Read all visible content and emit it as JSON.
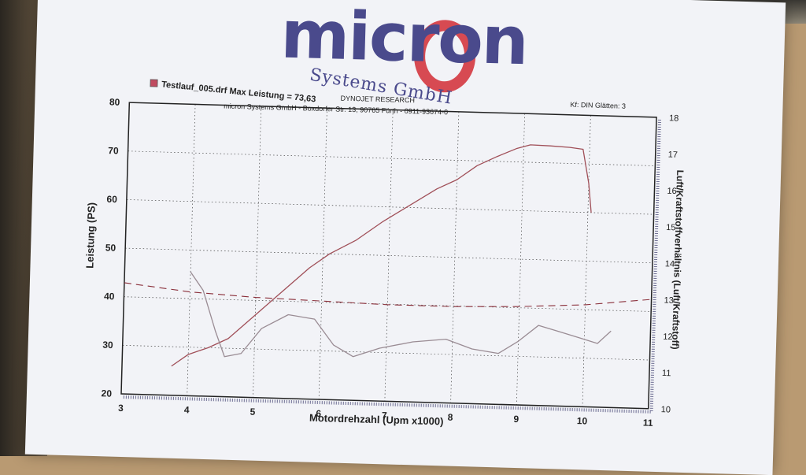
{
  "header": {
    "logo_text": "micron",
    "logo_subtitle": "Systems GmbH",
    "dyno_label": "DYNOJET RESEARCH",
    "address": "micron Systems GmbH - Boxdorfer Str. 13, 90765 Fürth - 0911-93674-0",
    "correction": "Kf: DIN  Glätten: 3"
  },
  "colors": {
    "paper": "#f2f3f7",
    "power_curve": "#a04f58",
    "afr_curve": "#9a8c94",
    "reference_line": "#8a2f3a",
    "logo_blue": "#4a4a8c",
    "logo_red": "#d4373f"
  },
  "chart_data": {
    "type": "line",
    "legend": {
      "label": "Testlauf_005.drf Max Leistung = 73,63",
      "position": "top-left"
    },
    "xlabel": "Motordrehzahl (Upm x1000)",
    "ylabel": "Leistung (PS)",
    "y2label": "Luft/Kraftstoffverhältnis (Luft/Kraftstoff)",
    "xlim": [
      3,
      11
    ],
    "ylim": [
      20,
      80
    ],
    "y2lim": [
      10,
      18
    ],
    "x_ticks": [
      3,
      4,
      5,
      6,
      7,
      8,
      9,
      10,
      11
    ],
    "y_ticks": [
      20,
      30,
      40,
      50,
      60,
      70,
      80
    ],
    "y2_ticks": [
      10,
      11,
      12,
      13,
      14,
      15,
      16,
      17,
      18
    ],
    "grid": true,
    "series": [
      {
        "axis": "left",
        "x": [
          3.75,
          4.0,
          4.3,
          4.6,
          5.0,
          5.4,
          5.8,
          6.1,
          6.5,
          6.9,
          7.3,
          7.7,
          8.0,
          8.3,
          8.6,
          8.9,
          9.1,
          9.4,
          9.7,
          9.9,
          10.0,
          10.05
        ],
        "y": [
          26,
          28.5,
          30,
          32,
          37,
          42,
          47,
          50,
          53,
          57,
          60.5,
          64,
          66,
          69,
          71,
          72.8,
          73.6,
          73.5,
          73.3,
          73.0,
          66,
          60
        ]
      },
      {
        "axis": "right",
        "x": [
          4.0,
          4.2,
          4.4,
          4.55,
          4.8,
          5.1,
          5.5,
          5.9,
          6.2,
          6.5,
          6.9,
          7.4,
          7.9,
          8.3,
          8.7,
          9.0,
          9.3,
          9.6,
          9.9,
          10.2,
          10.4
        ],
        "y": [
          13.4,
          12.9,
          11.8,
          11.1,
          11.2,
          11.9,
          12.3,
          12.2,
          11.5,
          11.2,
          11.45,
          11.65,
          11.75,
          11.5,
          11.4,
          11.75,
          12.2,
          12.05,
          11.9,
          11.75,
          12.1
        ]
      },
      {
        "axis": "right",
        "style": "dashed",
        "x": [
          3.0,
          4.0,
          5.0,
          6.0,
          7.0,
          8.0,
          9.0,
          10.0,
          11.0
        ],
        "y": [
          13.05,
          12.85,
          12.75,
          12.7,
          12.65,
          12.65,
          12.7,
          12.8,
          13.0
        ]
      }
    ]
  }
}
